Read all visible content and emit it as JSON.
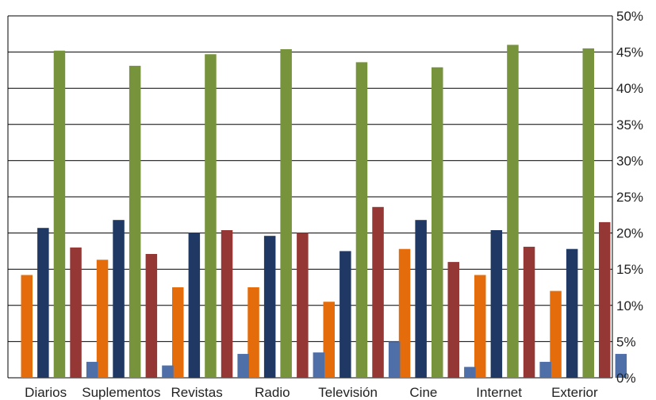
{
  "chart_data": {
    "type": "bar",
    "categories": [
      "Diarios",
      "Suplementos",
      "Revistas",
      "Radio",
      "Televisión",
      "Cine",
      "Internet",
      "Exterior"
    ],
    "y_axis": {
      "position": "right",
      "min": 0,
      "max": 50,
      "step": 5,
      "tick_labels": [
        "0%",
        "5%",
        "10%",
        "15%",
        "20%",
        "25%",
        "30%",
        "35%",
        "40%",
        "45%",
        "50%"
      ]
    },
    "grid": true,
    "legend": "none",
    "series": [
      {
        "color": "#E46C0A",
        "values": [
          14.2,
          16.3,
          12.5,
          12.5,
          10.5,
          17.8,
          14.2,
          12.0
        ]
      },
      {
        "color": "#1F3864",
        "values": [
          20.7,
          21.8,
          20.0,
          19.6,
          17.5,
          21.8,
          20.4,
          17.8
        ]
      },
      {
        "color": "#77933C",
        "values": [
          45.2,
          43.1,
          44.7,
          45.4,
          43.6,
          42.9,
          46.0,
          45.5
        ]
      },
      {
        "color": "#953735",
        "values": [
          18.0,
          17.1,
          20.4,
          20.0,
          23.6,
          16.0,
          18.1,
          21.5
        ]
      },
      {
        "color": "#4F6FA8",
        "values": [
          2.2,
          1.7,
          3.3,
          3.5,
          5.0,
          1.5,
          2.2,
          3.3
        ]
      }
    ]
  }
}
